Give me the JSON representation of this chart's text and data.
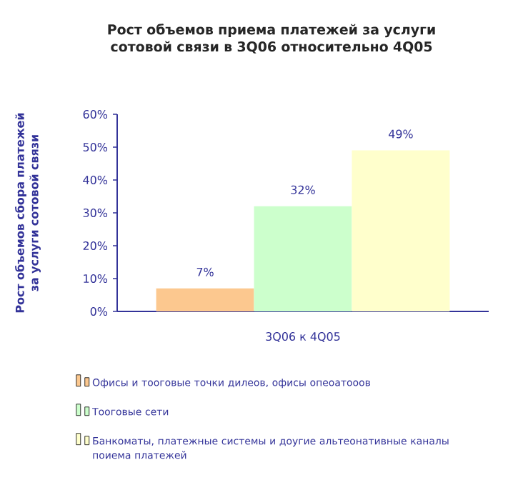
{
  "chart_data": {
    "type": "bar",
    "title": "Рост объемов приема платежей за услуги сотовой связи в 3Q06 относительно 4Q05",
    "ylabel": "Рост объемов сбора платежей за услуги сотовой связи",
    "categories": [
      "3Q06 к 4Q05"
    ],
    "series": [
      {
        "name": "Офисы и тооговые точки дилеов, офисы опеоатооов",
        "color": "#fcc88f",
        "values": [
          7
        ],
        "value_labels": [
          "7%"
        ]
      },
      {
        "name": "Тооговые сети",
        "color": "#ccffcc",
        "values": [
          32
        ],
        "value_labels": [
          "32%"
        ]
      },
      {
        "name": "Банкоматы, платежные системы и доугие альтеонативные каналы поиема платежей",
        "color": "#ffffcc",
        "values": [
          49
        ],
        "value_labels": [
          "49%"
        ]
      }
    ],
    "ylim": [
      0,
      60
    ],
    "yticks": [
      {
        "value": 0,
        "label": "0%"
      },
      {
        "value": 10,
        "label": "10%"
      },
      {
        "value": 20,
        "label": "20%"
      },
      {
        "value": 30,
        "label": "30%"
      },
      {
        "value": 40,
        "label": "40%"
      },
      {
        "value": 50,
        "label": "50%"
      },
      {
        "value": 60,
        "label": "60%"
      }
    ],
    "grid": false,
    "legend": "bottom"
  }
}
